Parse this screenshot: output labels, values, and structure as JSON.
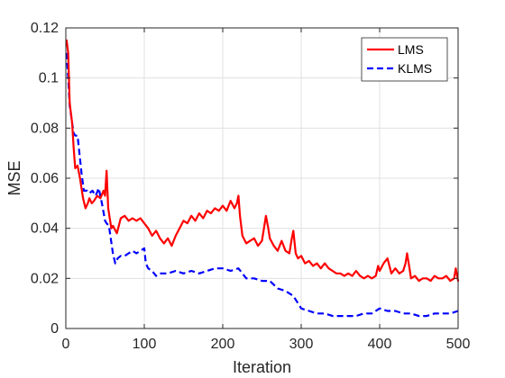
{
  "chart_data": {
    "type": "line",
    "title": "",
    "xlabel": "Iteration",
    "ylabel": "MSE",
    "xlim": [
      0,
      500
    ],
    "ylim": [
      0,
      0.12
    ],
    "x_ticks": [
      0,
      100,
      200,
      300,
      400,
      500
    ],
    "y_ticks": [
      0,
      0.02,
      0.04,
      0.06,
      0.08,
      0.1,
      0.12
    ],
    "x_tick_labels": [
      "0",
      "100",
      "200",
      "300",
      "400",
      "500"
    ],
    "y_tick_labels": [
      "0",
      "0.02",
      "0.04",
      "0.06",
      "0.08",
      "0.1",
      "0.12"
    ],
    "grid": true,
    "legend_position": "top-right",
    "series": [
      {
        "name": "LMS",
        "color": "#ff0000",
        "line_style": "solid",
        "x": [
          1,
          3,
          5,
          8,
          10,
          12,
          15,
          18,
          20,
          22,
          25,
          28,
          30,
          33,
          36,
          40,
          44,
          48,
          50,
          52,
          54,
          56,
          58,
          60,
          65,
          70,
          75,
          80,
          85,
          90,
          95,
          100,
          105,
          110,
          115,
          120,
          125,
          130,
          135,
          140,
          145,
          150,
          155,
          160,
          165,
          170,
          175,
          180,
          185,
          190,
          195,
          200,
          205,
          210,
          215,
          218,
          220,
          222,
          225,
          230,
          235,
          240,
          245,
          250,
          255,
          258,
          260,
          265,
          270,
          275,
          280,
          285,
          288,
          290,
          293,
          296,
          300,
          305,
          310,
          315,
          320,
          325,
          330,
          335,
          340,
          345,
          350,
          355,
          360,
          365,
          370,
          375,
          380,
          385,
          390,
          395,
          398,
          400,
          405,
          410,
          415,
          420,
          425,
          430,
          433,
          435,
          438,
          440,
          445,
          450,
          455,
          460,
          465,
          470,
          475,
          480,
          485,
          490,
          495,
          497,
          500
        ],
        "y": [
          0.115,
          0.11,
          0.09,
          0.082,
          0.072,
          0.064,
          0.065,
          0.06,
          0.056,
          0.052,
          0.048,
          0.05,
          0.052,
          0.05,
          0.051,
          0.053,
          0.052,
          0.055,
          0.053,
          0.063,
          0.048,
          0.044,
          0.04,
          0.041,
          0.038,
          0.044,
          0.045,
          0.043,
          0.044,
          0.043,
          0.044,
          0.042,
          0.04,
          0.037,
          0.039,
          0.036,
          0.034,
          0.036,
          0.033,
          0.037,
          0.04,
          0.043,
          0.042,
          0.045,
          0.043,
          0.046,
          0.044,
          0.047,
          0.046,
          0.048,
          0.047,
          0.049,
          0.047,
          0.051,
          0.048,
          0.05,
          0.053,
          0.045,
          0.037,
          0.034,
          0.035,
          0.036,
          0.033,
          0.035,
          0.045,
          0.04,
          0.036,
          0.033,
          0.031,
          0.035,
          0.031,
          0.03,
          0.036,
          0.039,
          0.03,
          0.028,
          0.029,
          0.026,
          0.027,
          0.025,
          0.026,
          0.024,
          0.026,
          0.024,
          0.023,
          0.022,
          0.022,
          0.021,
          0.022,
          0.021,
          0.023,
          0.021,
          0.02,
          0.021,
          0.02,
          0.021,
          0.025,
          0.023,
          0.026,
          0.028,
          0.022,
          0.024,
          0.022,
          0.023,
          0.026,
          0.03,
          0.024,
          0.02,
          0.021,
          0.019,
          0.02,
          0.02,
          0.019,
          0.021,
          0.02,
          0.02,
          0.021,
          0.019,
          0.02,
          0.024,
          0.019
        ]
      },
      {
        "name": "KLMS",
        "color": "#0000ff",
        "line_style": "dashed",
        "x": [
          1,
          3,
          5,
          8,
          10,
          12,
          15,
          20,
          23,
          27,
          30,
          34,
          38,
          42,
          46,
          50,
          52,
          55,
          60,
          63,
          66,
          70,
          75,
          80,
          85,
          90,
          95,
          100,
          102,
          105,
          110,
          115,
          120,
          130,
          140,
          150,
          160,
          170,
          180,
          190,
          200,
          210,
          220,
          225,
          230,
          240,
          250,
          260,
          270,
          280,
          290,
          300,
          310,
          320,
          330,
          340,
          350,
          360,
          370,
          380,
          390,
          400,
          410,
          420,
          430,
          440,
          450,
          460,
          470,
          480,
          490,
          500
        ],
        "y": [
          0.11,
          0.1,
          0.089,
          0.082,
          0.078,
          0.077,
          0.077,
          0.062,
          0.055,
          0.055,
          0.054,
          0.055,
          0.053,
          0.056,
          0.05,
          0.043,
          0.042,
          0.041,
          0.03,
          0.026,
          0.028,
          0.029,
          0.029,
          0.03,
          0.031,
          0.03,
          0.031,
          0.032,
          0.026,
          0.024,
          0.023,
          0.021,
          0.022,
          0.022,
          0.023,
          0.022,
          0.023,
          0.022,
          0.023,
          0.024,
          0.024,
          0.023,
          0.024,
          0.022,
          0.02,
          0.02,
          0.019,
          0.019,
          0.016,
          0.015,
          0.013,
          0.008,
          0.007,
          0.006,
          0.006,
          0.005,
          0.005,
          0.005,
          0.005,
          0.006,
          0.006,
          0.008,
          0.007,
          0.007,
          0.006,
          0.006,
          0.005,
          0.005,
          0.006,
          0.006,
          0.006,
          0.007
        ]
      }
    ]
  }
}
